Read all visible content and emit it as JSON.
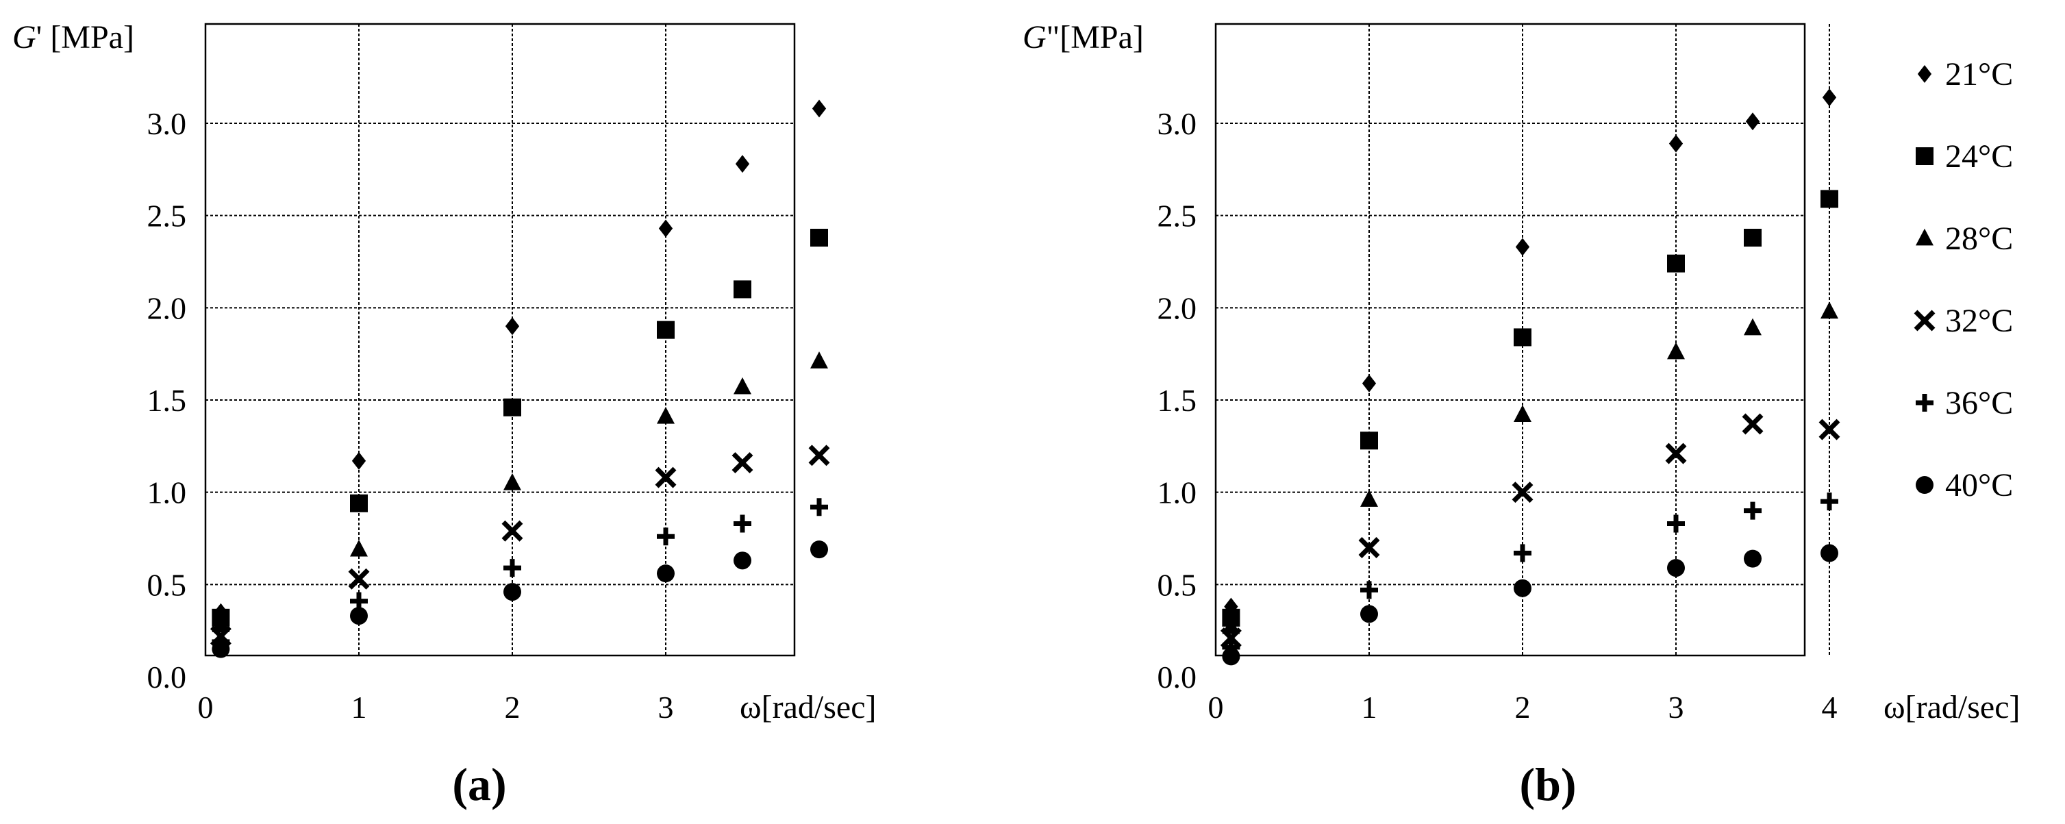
{
  "chart_data": [
    {
      "type": "scatter",
      "panel_label": "(a)",
      "ylabel_italic": "G",
      "ylabel_rest": "' [MPa]",
      "xlabel": "ω[rad/sec]",
      "xlim": [
        0,
        4
      ],
      "ylim": [
        0,
        3.0
      ],
      "xticks": [
        "0",
        "1",
        "2",
        "3"
      ],
      "yticks": [
        "0.0",
        "0.5",
        "1.0",
        "1.5",
        "2.0",
        "2.5",
        "3.0"
      ],
      "grid": true,
      "x": [
        0.1,
        1,
        2,
        3,
        3.5,
        4
      ],
      "series": [
        {
          "name": "21°C",
          "marker": "diamond",
          "values": [
            0.35,
            1.17,
            1.9,
            2.43,
            2.78,
            3.08
          ]
        },
        {
          "name": "24°C",
          "marker": "square",
          "values": [
            0.32,
            0.94,
            1.46,
            1.88,
            2.1,
            2.38
          ]
        },
        {
          "name": "28°C",
          "marker": "triangle",
          "values": [
            0.28,
            0.69,
            1.05,
            1.41,
            1.57,
            1.71
          ]
        },
        {
          "name": "32°C",
          "marker": "x",
          "values": [
            0.22,
            0.53,
            0.79,
            1.08,
            1.16,
            1.2
          ]
        },
        {
          "name": "36°C",
          "marker": "plus",
          "values": [
            0.19,
            0.41,
            0.59,
            0.76,
            0.83,
            0.92
          ]
        },
        {
          "name": "40°C",
          "marker": "circle",
          "values": [
            0.15,
            0.33,
            0.46,
            0.56,
            0.63,
            0.69
          ]
        }
      ]
    },
    {
      "type": "scatter",
      "panel_label": "(b)",
      "ylabel_italic": "G",
      "ylabel_rest": "\"[MPa]",
      "xlabel": "ω[rad/sec]",
      "xlim": [
        0,
        4.5
      ],
      "ylim": [
        0,
        3.0
      ],
      "xticks": [
        "0",
        "1",
        "2",
        "3",
        "4"
      ],
      "yticks": [
        "0.0",
        "0.5",
        "1.0",
        "1.5",
        "2.0",
        "2.5",
        "3.0"
      ],
      "grid": true,
      "legend_position": "right",
      "x": [
        0.1,
        1,
        2,
        3,
        3.5,
        4
      ],
      "series": [
        {
          "name": "21°C",
          "marker": "diamond",
          "values": [
            0.38,
            1.59,
            2.33,
            2.89,
            3.01,
            3.14
          ]
        },
        {
          "name": "24°C",
          "marker": "square",
          "values": [
            0.32,
            1.28,
            1.84,
            2.24,
            2.38,
            2.59
          ]
        },
        {
          "name": "28°C",
          "marker": "triangle",
          "values": [
            0.27,
            0.96,
            1.42,
            1.76,
            1.89,
            1.98
          ]
        },
        {
          "name": "32°C",
          "marker": "x",
          "values": [
            0.21,
            0.7,
            1.0,
            1.21,
            1.37,
            1.34
          ]
        },
        {
          "name": "36°C",
          "marker": "plus",
          "values": [
            0.16,
            0.47,
            0.67,
            0.83,
            0.9,
            0.95
          ]
        },
        {
          "name": "40°C",
          "marker": "circle",
          "values": [
            0.11,
            0.34,
            0.48,
            0.59,
            0.64,
            0.67
          ]
        }
      ]
    }
  ]
}
